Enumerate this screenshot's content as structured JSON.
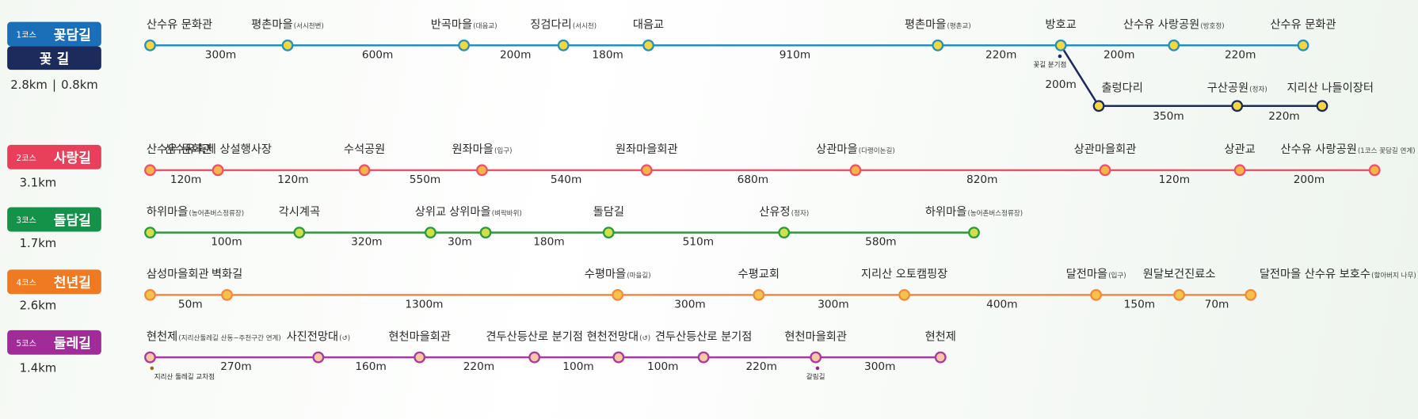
{
  "courses": [
    {
      "badge": {
        "code": "1코스",
        "name": "꽃담길"
      },
      "length": "2.8km",
      "length_separator": "|",
      "stops": [
        {
          "name": "산수유 문화관"
        },
        {
          "name": "평촌마을",
          "sub": "(서시천변)"
        },
        {
          "name": "반곡마을",
          "sub": "(대음교)"
        },
        {
          "name": "징검다리",
          "sub": "(서시천)"
        },
        {
          "name": "대음교"
        },
        {
          "name": "평촌마을",
          "sub": "(평촌교)"
        },
        {
          "name": "방호교",
          "note": "꽃길 분기점"
        },
        {
          "name": "산수유 사랑공원",
          "sub": "(방호정)"
        },
        {
          "name": "산수유 문화관"
        }
      ],
      "distances": [
        "300m",
        "600m",
        "200m",
        "180m",
        "910m",
        "220m",
        "200m",
        "220m"
      ],
      "branch": {
        "badge_name": "꽃 길",
        "length": "0.8km",
        "stops": [
          {
            "name": "출렁다리"
          },
          {
            "name": "구산공원",
            "sub": "(정자)"
          },
          {
            "name": "지리산 나들이장터"
          }
        ],
        "distances": [
          "200m",
          "350m",
          "220m"
        ]
      }
    },
    {
      "badge": {
        "code": "2코스",
        "name": "사랑길"
      },
      "length": "3.1km",
      "stops": [
        {
          "name": "산수유 문화관"
        },
        {
          "name": "산수유축제 상설행사장"
        },
        {
          "name": "수석공원"
        },
        {
          "name": "원좌마을",
          "sub": "(입구)"
        },
        {
          "name": "원좌마을회관"
        },
        {
          "name": "상관마을",
          "sub": "(다랭이논길)"
        },
        {
          "name": "상관마을회관"
        },
        {
          "name": "상관교"
        },
        {
          "name": "산수유 사랑공원",
          "sub": "(1코스 꽃담길 연계)"
        }
      ],
      "distances": [
        "120m",
        "120m",
        "550m",
        "540m",
        "680m",
        "820m",
        "120m",
        "200m"
      ]
    },
    {
      "badge": {
        "code": "3코스",
        "name": "돌담길"
      },
      "length": "1.7km",
      "stops": [
        {
          "name": "하위마을",
          "sub": "(농어촌버스정류장)"
        },
        {
          "name": "각시계곡"
        },
        {
          "name": "상위교"
        },
        {
          "name": "상위마을",
          "sub": "(벼락바위)"
        },
        {
          "name": "돌담길"
        },
        {
          "name": "산유정",
          "sub": "(정자)"
        },
        {
          "name": "하위마을",
          "sub": "(농어촌버스정류장)"
        }
      ],
      "distances": [
        "100m",
        "320m",
        "30m",
        "180m",
        "510m",
        "580m"
      ]
    },
    {
      "badge": {
        "code": "4코스",
        "name": "천년길"
      },
      "length": "2.6km",
      "stops": [
        {
          "name": "삼성마을회관"
        },
        {
          "name": "벽화길"
        },
        {
          "name": "수평마을",
          "sub": "(마을길)"
        },
        {
          "name": "수평교회"
        },
        {
          "name": "지리산 오토캠핑장"
        },
        {
          "name": "달전마을",
          "sub": "(입구)"
        },
        {
          "name": "원달보건진료소"
        },
        {
          "name": "달전마을 산수유 보호수",
          "sub": "(할아버지 나무)"
        }
      ],
      "distances": [
        "50m",
        "1300m",
        "300m",
        "300m",
        "400m",
        "150m",
        "70m"
      ]
    },
    {
      "badge": {
        "code": "5코스",
        "name": "둘레길"
      },
      "length": "1.4km",
      "stops": [
        {
          "name": "현천제",
          "sub": "(지리산둘레길 산동~주천구간 연계)",
          "note": "지리산 둘레길 교차점"
        },
        {
          "name": "사진전망대",
          "sub": "(↺)"
        },
        {
          "name": "현천마을회관"
        },
        {
          "name": "견두산등산로 분기점"
        },
        {
          "name": "현천전망대",
          "sub": "(↺)"
        },
        {
          "name": "견두산등산로 분기점"
        },
        {
          "name": "현천마을회관",
          "note": "갈림길"
        },
        {
          "name": "현천제"
        }
      ],
      "distances": [
        "270m",
        "160m",
        "220m",
        "100m",
        "100m",
        "220m",
        "300m"
      ]
    }
  ]
}
